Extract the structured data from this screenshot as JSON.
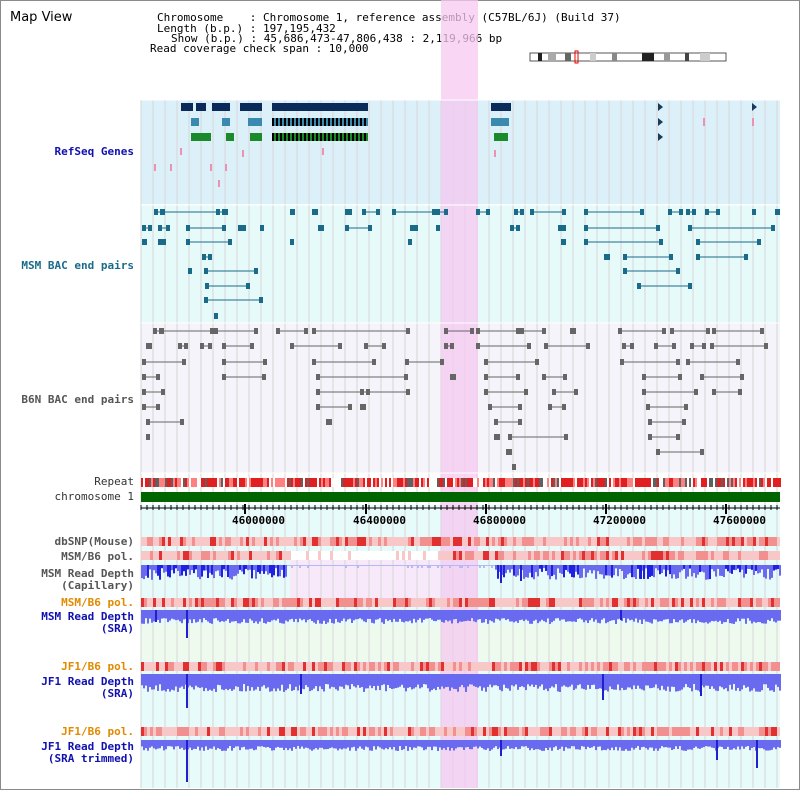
{
  "page_title": "Map View",
  "header": {
    "chromosome_line": "Chromosome    : Chromosome 1, reference assembly (C57BL/6J) (Build 37)",
    "length_line": "Length (b.p.) : 197,195,432",
    "show_line": "Show (b.p.) : 45,686,473-47,806,438 : 2,119,966 bp",
    "read_cov_line": "Read coverage check span : 10,000"
  },
  "tracks": {
    "refseq": "RefSeq Genes",
    "msm_bac": "MSM BAC end pairs",
    "b6n_bac": "B6N BAC end pairs",
    "repeat": "Repeat",
    "chromosome": "chromosome 1",
    "dbsnp": "dbSNP(Mouse)",
    "msm_b6_pol": "MSM/B6 pol.",
    "msm_depth_cap": "MSM Read Depth\n(Capillary)",
    "msm_b6_pol2": "MSM/B6 pol.",
    "msm_depth_sra": "MSM Read Depth\n(SRA)",
    "jf1_b6_pol": "JF1/B6 pol.",
    "jf1_depth_sra": "JF1 Read Depth\n(SRA)",
    "jf1_b6_pol2": "JF1/B6 pol.",
    "jf1_depth_trim": "JF1 Read Depth\n(SRA trimmed)"
  },
  "axis_ticks": [
    "46000000",
    "46400000",
    "46800000",
    "47200000",
    "47600000"
  ],
  "colors": {
    "refseq_bg": "#dcf0fa",
    "msm_bac_bg": "#e6fafa",
    "b6n_bg": "#f4f4fa",
    "highlight": "#f5c8f0",
    "chromosome_bar": "#006400",
    "depth": "#3030e0"
  }
}
